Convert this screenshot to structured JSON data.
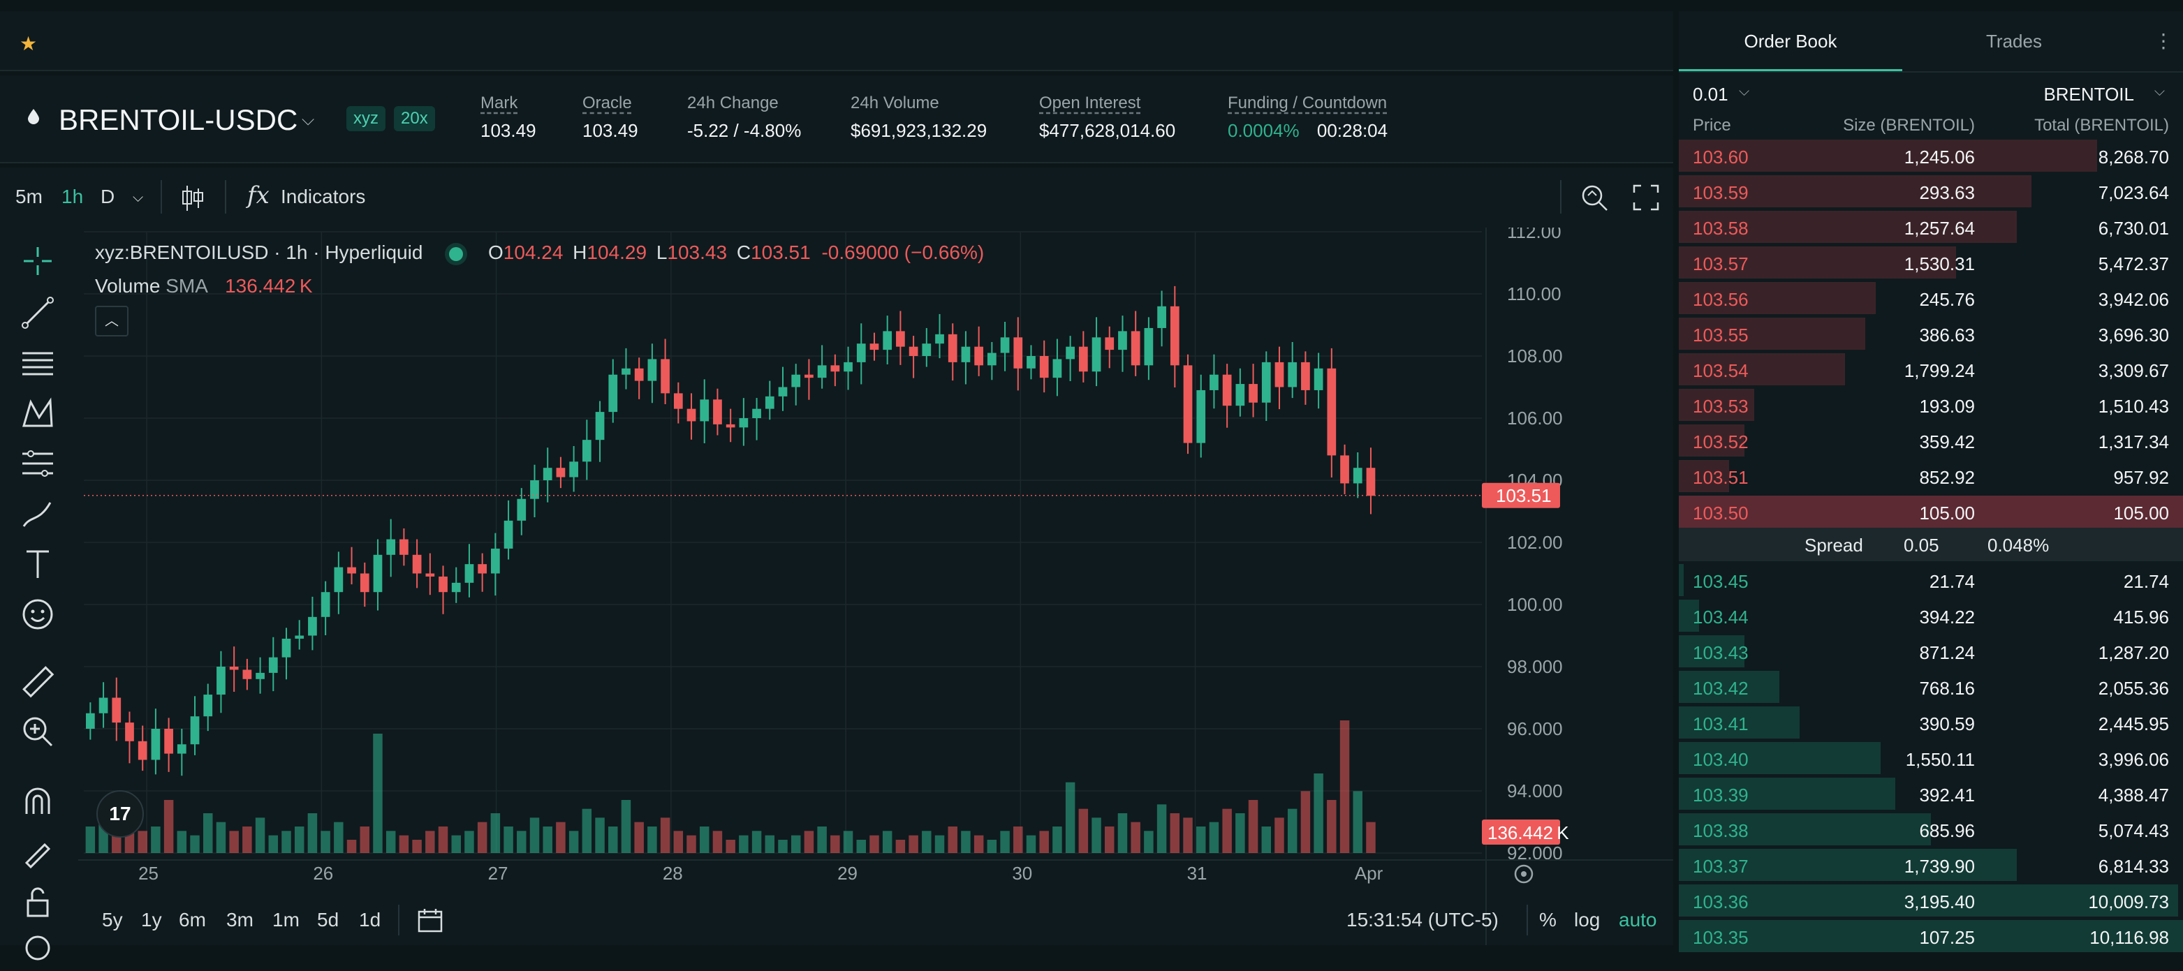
{
  "header": {
    "symbol": "BRENTOIL-USDC",
    "badge_dex": "xyz",
    "badge_leverage": "20x",
    "stats": [
      {
        "label": "Mark",
        "value": "103.49",
        "underline": true
      },
      {
        "label": "Oracle",
        "value": "103.49",
        "underline": true
      },
      {
        "label": "24h Change",
        "value": "-5.22 / -4.80%",
        "underline": false,
        "color": "#ee5a5a"
      },
      {
        "label": "24h Volume",
        "value": "$691,923,132.29",
        "underline": false
      },
      {
        "label": "Open Interest",
        "value": "$477,628,014.60",
        "underline": true
      }
    ],
    "funding_label": "Funding / Countdown",
    "funding_rate": "0.0004%",
    "countdown": "00:28:04"
  },
  "toolbar": {
    "timeframes": [
      "5m",
      "1h",
      "D"
    ],
    "active_timeframe": "1h",
    "indicators_label": "Indicators"
  },
  "legend": {
    "title": "xyz:BRENTOILUSD · 1h · Hyperliquid",
    "o_label": "O",
    "o": "104.24",
    "h_label": "H",
    "h": "104.29",
    "l_label": "L",
    "l": "103.43",
    "c_label": "C",
    "c": "103.51",
    "change": "-0.69000 (−0.66%)",
    "volume_label": "Volume",
    "sma_label": "SMA",
    "sma_value": "136.442 K"
  },
  "chart_data": {
    "type": "candlestick",
    "y_ticks": [
      "112.00",
      "110.00",
      "108.00",
      "106.00",
      "104.00",
      "102.00",
      "100.00",
      "98.000",
      "96.000",
      "94.000",
      "92.000"
    ],
    "ylim": [
      92,
      112
    ],
    "x_ticks": [
      "25",
      "26",
      "27",
      "28",
      "29",
      "30",
      "31",
      "Apr"
    ],
    "last_price": "103.51",
    "volume_marker": "136.442 K",
    "price_path": [
      96.5,
      97.0,
      96.2,
      95.6,
      95.0,
      96.0,
      95.2,
      95.5,
      96.4,
      97.1,
      98.0,
      97.9,
      97.6,
      97.8,
      98.3,
      98.9,
      99.0,
      99.6,
      100.4,
      101.2,
      101.0,
      100.4,
      101.6,
      102.1,
      101.6,
      101.0,
      100.9,
      100.4,
      100.7,
      101.3,
      101.0,
      101.8,
      102.7,
      103.4,
      104.0,
      104.4,
      104.1,
      104.6,
      105.3,
      106.2,
      107.4,
      107.6,
      107.2,
      107.9,
      106.8,
      106.3,
      105.9,
      106.6,
      105.8,
      105.7,
      106.0,
      106.3,
      106.7,
      107.0,
      107.4,
      107.3,
      107.7,
      107.5,
      107.8,
      108.4,
      108.2,
      108.8,
      108.3,
      108.0,
      108.4,
      108.7,
      107.8,
      108.3,
      107.7,
      108.1,
      108.6,
      107.6,
      108.0,
      107.3,
      107.9,
      108.3,
      107.5,
      108.6,
      108.2,
      108.8,
      107.7,
      108.9,
      109.6,
      107.7,
      105.2,
      106.9,
      107.4,
      106.4,
      107.1,
      106.5,
      107.8,
      107.0,
      107.8,
      106.9,
      107.6,
      104.8,
      103.9,
      104.4,
      103.5
    ],
    "volume_path": [
      6,
      10,
      4,
      8,
      5,
      6,
      12,
      5,
      4,
      9,
      7,
      5,
      6,
      8,
      4,
      5,
      6,
      9,
      5,
      7,
      3,
      6,
      27,
      5,
      4,
      3,
      5,
      6,
      4,
      5,
      7,
      9,
      6,
      5,
      8,
      6,
      7,
      5,
      10,
      8,
      6,
      12,
      7,
      6,
      8,
      5,
      4,
      6,
      5,
      3,
      4,
      5,
      4,
      3,
      4,
      5,
      6,
      4,
      5,
      3,
      4,
      5,
      3,
      4,
      5,
      4,
      6,
      5,
      4,
      3,
      5,
      6,
      4,
      5,
      6,
      16,
      10,
      8,
      6,
      9,
      7,
      5,
      11,
      9,
      8,
      6,
      7,
      10,
      9,
      12,
      6,
      8,
      10,
      14,
      18,
      12,
      30,
      14,
      7
    ]
  },
  "bottom_bar": {
    "ranges": [
      "5y",
      "1y",
      "6m",
      "3m",
      "1m",
      "5d",
      "1d"
    ],
    "clock": "15:31:54 (UTC-5)",
    "pct": "%",
    "log": "log",
    "auto": "auto"
  },
  "orderbook": {
    "tab_book": "Order Book",
    "tab_trades": "Trades",
    "tick_size": "0.01",
    "asset": "BRENTOIL",
    "col_price": "Price",
    "col_size": "Size (BRENTOIL)",
    "col_total": "Total (BRENTOIL)",
    "asks": [
      {
        "price": "103.60",
        "size": "1,245.06",
        "total": "8,268.70",
        "depth": 0.83
      },
      {
        "price": "103.59",
        "size": "293.63",
        "total": "7,023.64",
        "depth": 0.7
      },
      {
        "price": "103.58",
        "size": "1,257.64",
        "total": "6,730.01",
        "depth": 0.67
      },
      {
        "price": "103.57",
        "size": "1,530.31",
        "total": "5,472.37",
        "depth": 0.55
      },
      {
        "price": "103.56",
        "size": "245.76",
        "total": "3,942.06",
        "depth": 0.39
      },
      {
        "price": "103.55",
        "size": "386.63",
        "total": "3,696.30",
        "depth": 0.37
      },
      {
        "price": "103.54",
        "size": "1,799.24",
        "total": "3,309.67",
        "depth": 0.33
      },
      {
        "price": "103.53",
        "size": "193.09",
        "total": "1,510.43",
        "depth": 0.15
      },
      {
        "price": "103.52",
        "size": "359.42",
        "total": "1,317.34",
        "depth": 0.13
      },
      {
        "price": "103.51",
        "size": "852.92",
        "total": "957.92",
        "depth": 0.1
      },
      {
        "price": "103.50",
        "size": "105.00",
        "total": "105.00",
        "depth": 1.0
      }
    ],
    "spread_label": "Spread",
    "spread_value": "0.05",
    "spread_pct": "0.048%",
    "bids": [
      {
        "price": "103.45",
        "size": "21.74",
        "total": "21.74",
        "depth": 0.01
      },
      {
        "price": "103.44",
        "size": "394.22",
        "total": "415.96",
        "depth": 0.04
      },
      {
        "price": "103.43",
        "size": "871.24",
        "total": "1,287.20",
        "depth": 0.13
      },
      {
        "price": "103.42",
        "size": "768.16",
        "total": "2,055.36",
        "depth": 0.2
      },
      {
        "price": "103.41",
        "size": "390.59",
        "total": "2,445.95",
        "depth": 0.24
      },
      {
        "price": "103.40",
        "size": "1,550.11",
        "total": "3,996.06",
        "depth": 0.4
      },
      {
        "price": "103.39",
        "size": "392.41",
        "total": "4,388.47",
        "depth": 0.43
      },
      {
        "price": "103.38",
        "size": "685.96",
        "total": "5,074.43",
        "depth": 0.5
      },
      {
        "price": "103.37",
        "size": "1,739.90",
        "total": "6,814.33",
        "depth": 0.67
      },
      {
        "price": "103.36",
        "size": "3,195.40",
        "total": "10,009.73",
        "depth": 0.99
      },
      {
        "price": "103.35",
        "size": "107.25",
        "total": "10,116.98",
        "depth": 1.0
      }
    ]
  },
  "colors": {
    "up": "#2fb38e",
    "down": "#ee5a5a",
    "accent": "#3bc2a0",
    "star": "#f3b53b"
  }
}
